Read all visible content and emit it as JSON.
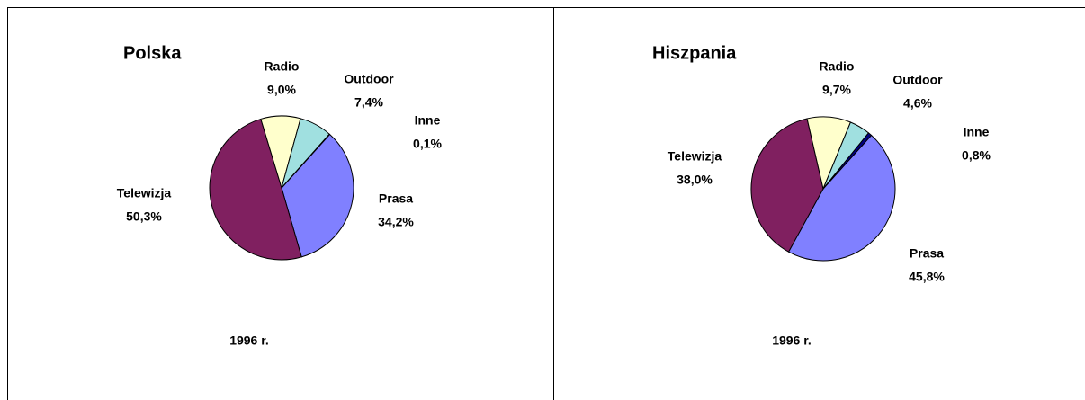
{
  "chart_data": [
    {
      "type": "pie",
      "title": "Polska",
      "subtitle": "1996 r.",
      "categories": [
        "Prasa",
        "Telewizja",
        "Radio",
        "Outdoor",
        "Inne"
      ],
      "values": [
        34.2,
        50.3,
        9.0,
        7.4,
        0.1
      ],
      "value_labels": [
        "34,2%",
        "50,3%",
        "9,0%",
        "7,4%",
        "0,1%"
      ],
      "colors": [
        "#8080ff",
        "#802060",
        "#ffffcc",
        "#a0e0e0",
        "#000080"
      ]
    },
    {
      "type": "pie",
      "title": "Hiszpania",
      "subtitle": "1996 r.",
      "categories": [
        "Prasa",
        "Telewizja",
        "Radio",
        "Outdoor",
        "Inne"
      ],
      "values": [
        45.8,
        38.0,
        9.7,
        4.6,
        0.8
      ],
      "value_labels": [
        "45,8%",
        "38,0%",
        "9,7%",
        "4,6%",
        "0,8%"
      ],
      "colors": [
        "#8080ff",
        "#802060",
        "#ffffcc",
        "#a0e0e0",
        "#000080"
      ]
    }
  ]
}
